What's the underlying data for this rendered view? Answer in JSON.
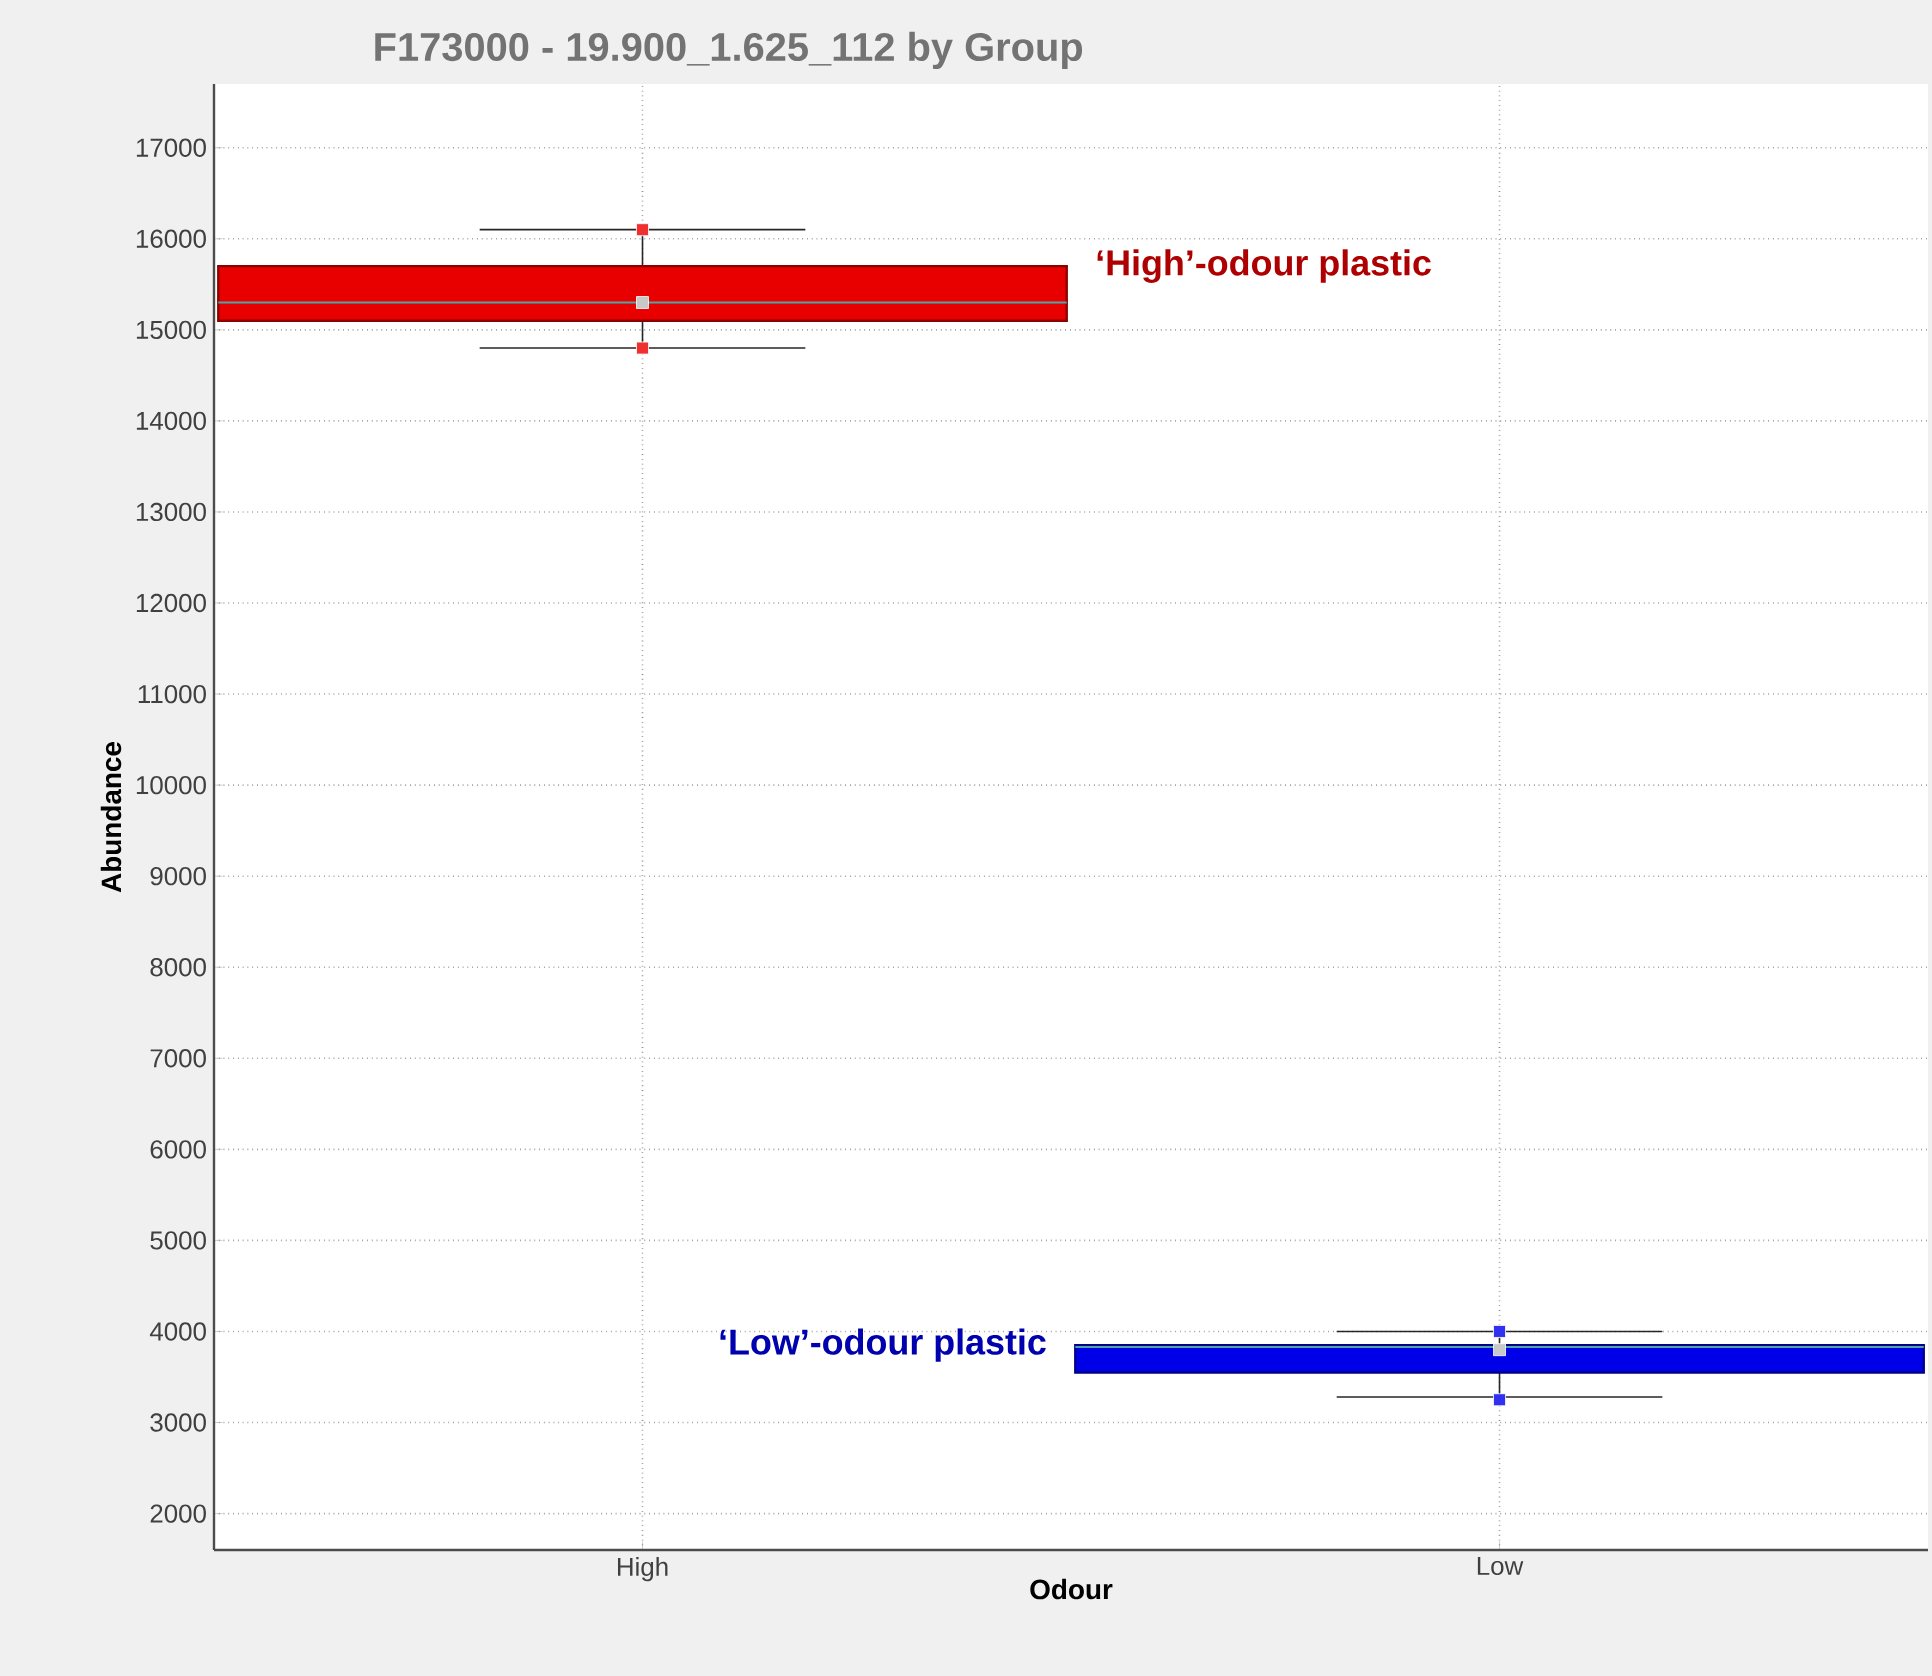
{
  "chart_data": {
    "type": "box",
    "title": "F173000 - 19.900_1.625_112 by Group",
    "xlabel": "Odour",
    "ylabel": "Abundance",
    "categories": [
      "High",
      "Low"
    ],
    "colors": [
      "#e80000",
      "#0000e8"
    ],
    "boxes": [
      {
        "low": 14800,
        "q1": 15100,
        "median": 15300,
        "q3": 15700,
        "high": 16100
      },
      {
        "low": 3280,
        "q1": 3550,
        "median": 3830,
        "q3": 3850,
        "high": 4000
      }
    ],
    "series": [
      {
        "type": "scatter",
        "x": [
          "High",
          "High",
          "High",
          "Low",
          "Low",
          "Low"
        ],
        "values": [
          16100,
          14800,
          15300,
          3800,
          4000,
          3250
        ],
        "colors": [
          "#f03030",
          "#f03030",
          "#c8c8c8",
          "#c8c8c8",
          "#3030f0",
          "#3030f0"
        ],
        "marker": "square"
      }
    ],
    "annotations": [
      "‘High’-odour plastic",
      "‘Low’-odour plastic"
    ],
    "ylim": [
      1600,
      17700
    ],
    "yticks": [
      2000,
      3000,
      4000,
      5000,
      6000,
      7000,
      8000,
      9000,
      10000,
      11000,
      12000,
      13000,
      14000,
      15000,
      16000,
      17000
    ],
    "grid": true
  }
}
